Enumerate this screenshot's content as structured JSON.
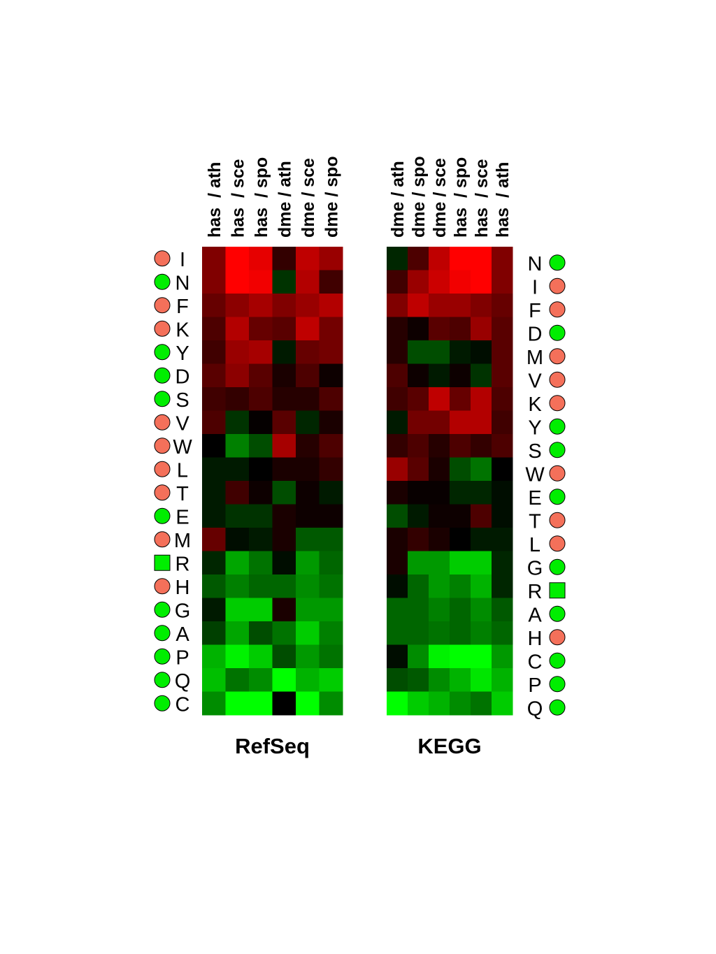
{
  "chart_data": [
    {
      "type": "heatmap",
      "title": "RefSeq",
      "columns": [
        "has  / ath",
        "has  / sce",
        "has  / spo",
        "dme / ath",
        "dme / sce",
        "dme / spo"
      ],
      "rows": [
        "I",
        "N",
        "F",
        "K",
        "Y",
        "D",
        "S",
        "V",
        "W",
        "L",
        "T",
        "E",
        "M",
        "R",
        "H",
        "G",
        "A",
        "P",
        "Q",
        "C"
      ],
      "row_markers": [
        {
          "shape": "circle",
          "color": "#f4705a"
        },
        {
          "shape": "circle",
          "color": "#00ee00"
        },
        {
          "shape": "circle",
          "color": "#f4705a"
        },
        {
          "shape": "circle",
          "color": "#f4705a"
        },
        {
          "shape": "circle",
          "color": "#00ee00"
        },
        {
          "shape": "circle",
          "color": "#00ee00"
        },
        {
          "shape": "circle",
          "color": "#00ee00"
        },
        {
          "shape": "circle",
          "color": "#f4705a"
        },
        {
          "shape": "circle",
          "color": "#f4705a"
        },
        {
          "shape": "circle",
          "color": "#f4705a"
        },
        {
          "shape": "circle",
          "color": "#f4705a"
        },
        {
          "shape": "circle",
          "color": "#00ee00"
        },
        {
          "shape": "circle",
          "color": "#f4705a"
        },
        {
          "shape": "square",
          "color": "#00ee00"
        },
        {
          "shape": "circle",
          "color": "#f4705a"
        },
        {
          "shape": "circle",
          "color": "#00ee00"
        },
        {
          "shape": "circle",
          "color": "#00ee00"
        },
        {
          "shape": "circle",
          "color": "#00ee00"
        },
        {
          "shape": "circle",
          "color": "#00ee00"
        },
        {
          "shape": "circle",
          "color": "#00ee00"
        }
      ],
      "values": [
        [
          0.5,
          1,
          0.9,
          0.2,
          0.75,
          0.6
        ],
        [
          0.5,
          1,
          0.95,
          -0.2,
          0.7,
          0.25
        ],
        [
          0.4,
          0.55,
          0.65,
          0.5,
          0.6,
          0.7
        ],
        [
          0.3,
          0.7,
          0.4,
          0.35,
          0.75,
          0.45
        ],
        [
          0.25,
          0.6,
          0.65,
          -0.1,
          0.4,
          0.45
        ],
        [
          0.35,
          0.55,
          0.35,
          0.1,
          0.3,
          0.05
        ],
        [
          0.25,
          0.2,
          0.3,
          0.15,
          0.15,
          0.3
        ],
        [
          0.3,
          -0.2,
          0.02,
          0.35,
          -0.15,
          0.1
        ],
        [
          0,
          -0.5,
          -0.3,
          0.65,
          0.15,
          0.3
        ],
        [
          -0.1,
          -0.1,
          0,
          0.1,
          0.1,
          0.2
        ],
        [
          -0.1,
          0.25,
          0.05,
          -0.3,
          0.05,
          -0.1
        ],
        [
          -0.1,
          -0.2,
          -0.2,
          0.1,
          0.05,
          0.05
        ],
        [
          0.4,
          -0.05,
          -0.1,
          0.1,
          -0.35,
          -0.35
        ],
        [
          -0.15,
          -0.65,
          -0.45,
          -0.05,
          -0.6,
          -0.4
        ],
        [
          -0.35,
          -0.5,
          -0.4,
          -0.4,
          -0.55,
          -0.45
        ],
        [
          -0.1,
          -0.8,
          -0.8,
          0.1,
          -0.6,
          -0.6
        ],
        [
          -0.25,
          -0.65,
          -0.3,
          -0.45,
          -0.8,
          -0.5
        ],
        [
          -0.7,
          -0.95,
          -0.8,
          -0.3,
          -0.6,
          -0.45
        ],
        [
          -0.75,
          -0.45,
          -0.55,
          -1,
          -0.7,
          -0.8
        ],
        [
          -0.55,
          -1,
          -1,
          0,
          -1,
          -0.55
        ]
      ]
    },
    {
      "type": "heatmap",
      "title": "KEGG",
      "columns": [
        "dme / ath",
        "dme / spo",
        "dme / sce",
        "has  / spo",
        "has  / sce",
        "has  / ath"
      ],
      "rows": [
        "N",
        "I",
        "F",
        "D",
        "M",
        "V",
        "K",
        "Y",
        "S",
        "W",
        "E",
        "T",
        "L",
        "G",
        "R",
        "A",
        "H",
        "C",
        "P",
        "Q"
      ],
      "row_markers": [
        {
          "shape": "circle",
          "color": "#00ee00"
        },
        {
          "shape": "circle",
          "color": "#f4705a"
        },
        {
          "shape": "circle",
          "color": "#f4705a"
        },
        {
          "shape": "circle",
          "color": "#00ee00"
        },
        {
          "shape": "circle",
          "color": "#f4705a"
        },
        {
          "shape": "circle",
          "color": "#f4705a"
        },
        {
          "shape": "circle",
          "color": "#f4705a"
        },
        {
          "shape": "circle",
          "color": "#00ee00"
        },
        {
          "shape": "circle",
          "color": "#00ee00"
        },
        {
          "shape": "circle",
          "color": "#f4705a"
        },
        {
          "shape": "circle",
          "color": "#00ee00"
        },
        {
          "shape": "circle",
          "color": "#f4705a"
        },
        {
          "shape": "circle",
          "color": "#f4705a"
        },
        {
          "shape": "circle",
          "color": "#00ee00"
        },
        {
          "shape": "square",
          "color": "#00ee00"
        },
        {
          "shape": "circle",
          "color": "#00ee00"
        },
        {
          "shape": "circle",
          "color": "#f4705a"
        },
        {
          "shape": "circle",
          "color": "#00ee00"
        },
        {
          "shape": "circle",
          "color": "#00ee00"
        },
        {
          "shape": "circle",
          "color": "#00ee00"
        }
      ],
      "values": [
        [
          -0.15,
          0.3,
          0.75,
          1,
          1,
          0.5
        ],
        [
          0.25,
          0.6,
          0.8,
          0.95,
          1,
          0.5
        ],
        [
          0.5,
          0.75,
          0.6,
          0.6,
          0.5,
          0.4
        ],
        [
          0.15,
          0.05,
          0.35,
          0.3,
          0.6,
          0.35
        ],
        [
          0.15,
          -0.3,
          -0.3,
          -0.1,
          -0.05,
          0.35
        ],
        [
          0.3,
          0.05,
          -0.1,
          0.05,
          -0.2,
          0.35
        ],
        [
          0.25,
          0.35,
          0.75,
          0.4,
          0.7,
          0.3
        ],
        [
          -0.1,
          0.45,
          0.45,
          0.7,
          0.7,
          0.25
        ],
        [
          0.2,
          0.3,
          0.15,
          0.3,
          0.2,
          0.3
        ],
        [
          0.6,
          0.35,
          0.1,
          -0.3,
          -0.45,
          0
        ],
        [
          0.1,
          0.03,
          0.03,
          -0.15,
          -0.15,
          -0.05
        ],
        [
          -0.3,
          -0.1,
          0.05,
          0.05,
          0.3,
          -0.05
        ],
        [
          0.1,
          0.2,
          0.1,
          0,
          -0.1,
          -0.1
        ],
        [
          0.1,
          -0.6,
          -0.6,
          -0.8,
          -0.8,
          -0.15
        ],
        [
          -0.05,
          -0.4,
          -0.6,
          -0.5,
          -0.7,
          -0.15
        ],
        [
          -0.4,
          -0.4,
          -0.5,
          -0.4,
          -0.55,
          -0.35
        ],
        [
          -0.4,
          -0.4,
          -0.45,
          -0.4,
          -0.5,
          -0.4
        ],
        [
          -0.05,
          -0.55,
          -0.95,
          -1,
          -1,
          -0.6
        ],
        [
          -0.3,
          -0.35,
          -0.55,
          -0.7,
          -0.9,
          -0.7
        ],
        [
          -1,
          -0.8,
          -0.7,
          -0.55,
          -0.45,
          -0.8
        ]
      ]
    }
  ]
}
